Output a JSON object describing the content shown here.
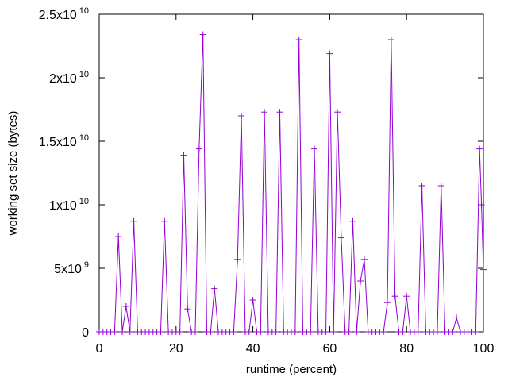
{
  "chart_data": {
    "type": "line",
    "xlabel": "runtime (percent)",
    "ylabel": "working set size (bytes)",
    "xlim": [
      0,
      100
    ],
    "ylim": [
      0,
      25000000000
    ],
    "grid": false,
    "legend": "none",
    "series_color": "#9400d3",
    "x_ticks": [
      {
        "value": 0,
        "label": "0"
      },
      {
        "value": 20,
        "label": "20"
      },
      {
        "value": 40,
        "label": "40"
      },
      {
        "value": 60,
        "label": "60"
      },
      {
        "value": 80,
        "label": "80"
      },
      {
        "value": 100,
        "label": "100"
      }
    ],
    "y_ticks": [
      {
        "value": 0,
        "label": "0",
        "exp": ""
      },
      {
        "value": 5000000000,
        "label": "5x10",
        "exp": "9"
      },
      {
        "value": 10000000000,
        "label": "1x10",
        "exp": "10"
      },
      {
        "value": 15000000000,
        "label": "1.5x10",
        "exp": "10"
      },
      {
        "value": 20000000000,
        "label": "2x10",
        "exp": "10"
      },
      {
        "value": 25000000000,
        "label": "2.5x10",
        "exp": "10"
      }
    ],
    "series": [
      {
        "x": [
          0,
          1,
          2,
          3,
          4,
          5,
          6,
          7,
          8,
          9,
          10,
          11,
          12,
          13,
          14,
          15,
          16,
          17,
          18,
          19,
          20,
          21,
          22,
          23,
          24,
          25,
          26,
          27,
          28,
          29,
          30,
          31,
          32,
          33,
          34,
          35,
          36,
          37,
          38,
          39,
          40,
          41,
          42,
          43,
          44,
          45,
          46,
          47,
          48,
          49,
          50,
          51,
          52,
          53,
          54,
          55,
          56,
          57,
          58,
          59,
          60,
          61,
          62,
          63,
          64,
          65,
          66,
          67,
          68,
          69,
          70,
          71,
          72,
          73,
          74,
          75,
          76,
          77,
          78,
          79,
          80,
          81,
          82,
          83,
          84,
          85,
          86,
          87,
          88,
          89,
          90,
          91,
          92,
          93,
          94,
          95,
          96,
          97,
          98,
          99,
          99.5,
          100
        ],
        "values": [
          0,
          0,
          0,
          0,
          0,
          7500000000,
          0,
          2000000000,
          0,
          8700000000,
          0,
          0,
          0,
          0,
          0,
          0,
          0,
          8700000000,
          0,
          0,
          0,
          0,
          13900000000,
          1800000000,
          0,
          0,
          14400000000,
          23400000000,
          0,
          0,
          3400000000,
          0,
          0,
          0,
          0,
          0,
          5700000000,
          17000000000,
          0,
          0,
          2500000000,
          0,
          0,
          17300000000,
          0,
          0,
          0,
          17300000000,
          0,
          0,
          0,
          0,
          23000000000,
          0,
          0,
          0,
          14400000000,
          0,
          0,
          0,
          21900000000,
          0,
          17300000000,
          7400000000,
          0,
          0,
          8700000000,
          0,
          4000000000,
          5700000000,
          0,
          0,
          0,
          0,
          0,
          2300000000,
          23000000000,
          2800000000,
          0,
          0,
          2800000000,
          0,
          0,
          0,
          11500000000,
          0,
          0,
          0,
          0,
          11500000000,
          0,
          0,
          0,
          1100000000,
          0,
          0,
          0,
          0,
          0,
          14400000000,
          10000000000,
          4900000000
        ]
      }
    ]
  }
}
